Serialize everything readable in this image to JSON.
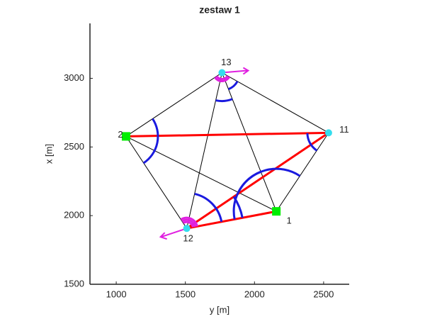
{
  "chart_data": {
    "type": "network",
    "title": "zestaw 1",
    "xlabel": "y [m]",
    "ylabel": "x [m]",
    "xlim": [
      810,
      2685
    ],
    "ylim": [
      1500,
      3400
    ],
    "xticks": [
      1000,
      1500,
      2000,
      2500
    ],
    "yticks": [
      1500,
      2000,
      2500,
      3000
    ],
    "points": [
      {
        "name": "1",
        "x": 2158,
        "y": 2031,
        "color": "#00ee00",
        "marker": "square"
      },
      {
        "name": "2",
        "x": 1071,
        "y": 2577,
        "color": "#00ee00",
        "marker": "square"
      },
      {
        "name": "11",
        "x": 2536,
        "y": 2603,
        "color": "#33ddee",
        "marker": "circle"
      },
      {
        "name": "12",
        "x": 1510,
        "y": 1907,
        "color": "#33ddee",
        "marker": "circle"
      },
      {
        "name": "13",
        "x": 1765,
        "y": 3041,
        "color": "#33ddee",
        "marker": "circle"
      }
    ],
    "segments": [
      {
        "from": "2",
        "to": "13",
        "color": "#000000"
      },
      {
        "from": "13",
        "to": "11",
        "color": "#000000"
      },
      {
        "from": "11",
        "to": "1",
        "color": "#000000"
      },
      {
        "from": "1",
        "to": "2",
        "color": "#000000"
      },
      {
        "from": "2",
        "to": "12",
        "color": "#000000"
      },
      {
        "from": "12",
        "to": "13",
        "color": "#000000"
      },
      {
        "from": "13",
        "to": "1",
        "color": "#000000"
      },
      {
        "from": "2",
        "to": "11",
        "color": "#ff0000"
      },
      {
        "from": "11",
        "to": "12",
        "color": "#ff0000"
      },
      {
        "from": "12",
        "to": "1",
        "color": "#ff0000"
      }
    ]
  }
}
